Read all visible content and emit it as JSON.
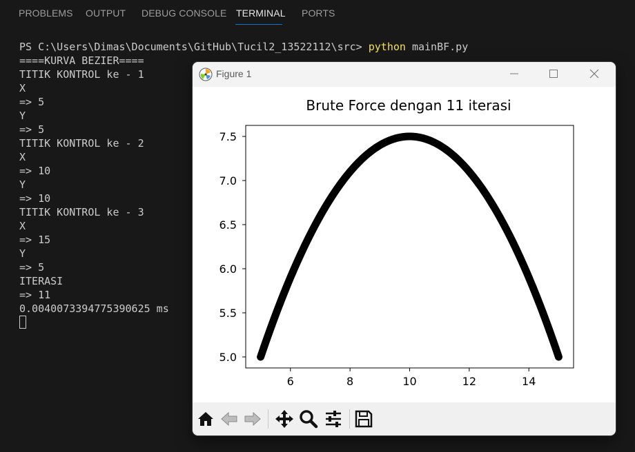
{
  "panel": {
    "tabs": [
      {
        "label": "PROBLEMS"
      },
      {
        "label": "OUTPUT"
      },
      {
        "label": "DEBUG CONSOLE"
      },
      {
        "label": "TERMINAL"
      },
      {
        "label": "PORTS"
      }
    ],
    "active_tab": "TERMINAL"
  },
  "terminal": {
    "prompt": "PS C:\\Users\\Dimas\\Documents\\GitHub\\Tucil2_13522112\\src> ",
    "command": "python",
    "args": " mainBF.py",
    "lines": [
      "====KURVA BEZIER====",
      "TITIK KONTROL ke - 1",
      "X",
      "=> 5",
      "Y",
      "=> 5",
      "TITIK KONTROL ke - 2",
      "X",
      "=> 10",
      "Y",
      "=> 10",
      "TITIK KONTROL ke - 3",
      "X",
      "=> 15",
      "Y",
      "=> 5",
      "ITERASI",
      "=> 11",
      "0.004007339477539062​5 ms"
    ]
  },
  "figure": {
    "window_title": "Figure 1",
    "icon": "matplotlib-icon",
    "toolbar_icons": [
      "home-icon",
      "back-icon",
      "forward-icon",
      "pan-icon",
      "zoom-icon",
      "configure-subplots-icon",
      "save-icon"
    ]
  },
  "chart_data": {
    "type": "line",
    "title": "Brute Force dengan 11 iterasi",
    "xlabel": "",
    "ylabel": "",
    "control_points": [
      [
        5,
        5
      ],
      [
        10,
        10
      ],
      [
        15,
        5
      ]
    ],
    "xlim": [
      4.5,
      15.5
    ],
    "ylim": [
      4.875,
      7.625
    ],
    "x_ticks": [
      6,
      8,
      10,
      12,
      14
    ],
    "x_tick_labels": [
      "6",
      "8",
      "10",
      "12",
      "14"
    ],
    "y_ticks": [
      5.0,
      5.5,
      6.0,
      6.5,
      7.0,
      7.5
    ],
    "y_tick_labels": [
      "5.0",
      "5.5",
      "6.0",
      "6.5",
      "7.0",
      "7.5"
    ],
    "grid": false,
    "series_color": "#000000"
  }
}
